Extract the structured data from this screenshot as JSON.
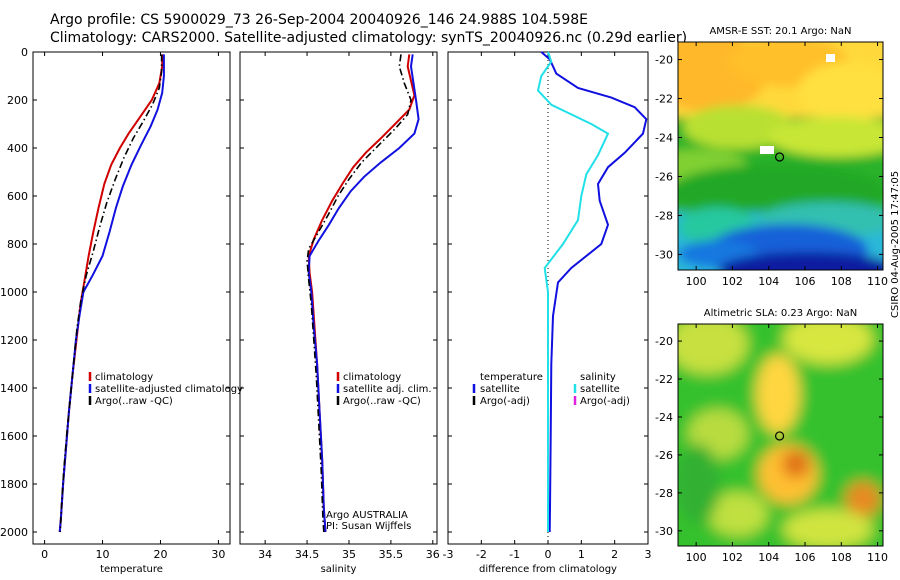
{
  "header": {
    "line1": "Argo profile: CS 5900029_73 26-Sep-2004 20040926_146 24.988S 104.598E",
    "line2": "Climatology: CARS2000. Satellite-adjusted climatology: synTS_20040926.nc (0.29d earlier)"
  },
  "footer_stamp": "CSIRO 04-Aug-2005 17:47:05",
  "chart_data": [
    {
      "type": "line",
      "panel": "temperature",
      "xlabel": "temperature",
      "xlim": [
        -2,
        32
      ],
      "ylim": [
        0,
        2050
      ],
      "y_reversed": true,
      "xticks": [
        0,
        10,
        20,
        30
      ],
      "yticks": [
        0,
        200,
        400,
        600,
        800,
        1000,
        1200,
        1400,
        1600,
        1800,
        2000
      ],
      "legend": {
        "placement": "lower-right",
        "entries": [
          {
            "label": "climatology",
            "color": "#d00000"
          },
          {
            "label": "satellite-adjusted climatology",
            "color": "#1010e0"
          },
          {
            "label": "Argo(..raw -QC)",
            "color": "#000000"
          }
        ]
      },
      "series": [
        {
          "name": "climatology",
          "color": "#d00000",
          "style": "solid",
          "points": [
            [
              20.3,
              10
            ],
            [
              20.3,
              60
            ],
            [
              19.8,
              130
            ],
            [
              18.5,
              200
            ],
            [
              16.5,
              270
            ],
            [
              14.5,
              340
            ],
            [
              13,
              400
            ],
            [
              11.5,
              470
            ],
            [
              10.3,
              550
            ],
            [
              9.3,
              650
            ],
            [
              8.4,
              750
            ],
            [
              7.6,
              850
            ],
            [
              6.9,
              950
            ],
            [
              6.2,
              1050
            ],
            [
              5.5,
              1200
            ],
            [
              4.8,
              1350
            ],
            [
              4.2,
              1500
            ],
            [
              3.7,
              1650
            ],
            [
              3.2,
              1800
            ],
            [
              2.8,
              1950
            ],
            [
              2.6,
              2000
            ]
          ]
        },
        {
          "name": "satellite-adjusted climatology",
          "color": "#1010e0",
          "style": "solid",
          "points": [
            [
              20.6,
              10
            ],
            [
              20.6,
              100
            ],
            [
              20.3,
              170
            ],
            [
              19.5,
              240
            ],
            [
              18.3,
              310
            ],
            [
              16.6,
              390
            ],
            [
              15,
              470
            ],
            [
              13.5,
              560
            ],
            [
              12.3,
              650
            ],
            [
              11.2,
              750
            ],
            [
              10,
              850
            ],
            [
              8.3,
              930
            ],
            [
              6.7,
              1000
            ],
            [
              6,
              1100
            ],
            [
              5.4,
              1200
            ],
            [
              4.8,
              1350
            ],
            [
              4.2,
              1500
            ],
            [
              3.7,
              1650
            ],
            [
              3.2,
              1800
            ],
            [
              2.8,
              1950
            ],
            [
              2.6,
              2000
            ]
          ]
        },
        {
          "name": "Argo(..raw -QC)",
          "color": "#000000",
          "style": "dashdot",
          "points": [
            [
              20.2,
              10
            ],
            [
              20.2,
              80
            ],
            [
              19.8,
              150
            ],
            [
              18.6,
              220
            ],
            [
              17,
              290
            ],
            [
              15.3,
              360
            ],
            [
              13.7,
              440
            ],
            [
              12.2,
              530
            ],
            [
              10.7,
              630
            ],
            [
              9.5,
              730
            ],
            [
              8.4,
              830
            ],
            [
              7.2,
              930
            ],
            [
              6.3,
              1030
            ],
            [
              5.6,
              1150
            ],
            [
              5,
              1300
            ],
            [
              4.4,
              1450
            ],
            [
              3.8,
              1600
            ],
            [
              3.3,
              1750
            ],
            [
              2.9,
              1900
            ],
            [
              2.7,
              2000
            ]
          ]
        }
      ]
    },
    {
      "type": "line",
      "panel": "salinity",
      "xlabel": "salinity",
      "xlim": [
        33.7,
        36.05
      ],
      "ylim": [
        0,
        2050
      ],
      "y_reversed": true,
      "xticks": [
        34,
        34.5,
        35,
        35.5,
        36
      ],
      "legend": {
        "placement": "lower-right",
        "entries": [
          {
            "label": "climatology",
            "color": "#d00000"
          },
          {
            "label": "satellite adj. clim.",
            "color": "#1010e0"
          },
          {
            "label": "Argo(..raw -QC)",
            "color": "#000000"
          }
        ]
      },
      "annotation": [
        "Argo AUSTRALIA",
        "PI: Susan Wijffels"
      ],
      "series": [
        {
          "name": "climatology",
          "color": "#d00000",
          "style": "solid",
          "points": [
            [
              35.72,
              10
            ],
            [
              35.7,
              60
            ],
            [
              35.74,
              120
            ],
            [
              35.78,
              180
            ],
            [
              35.72,
              240
            ],
            [
              35.55,
              300
            ],
            [
              35.38,
              360
            ],
            [
              35.2,
              420
            ],
            [
              35.05,
              480
            ],
            [
              34.92,
              550
            ],
            [
              34.8,
              620
            ],
            [
              34.68,
              700
            ],
            [
              34.58,
              780
            ],
            [
              34.52,
              850
            ],
            [
              34.53,
              920
            ],
            [
              34.56,
              1000
            ],
            [
              34.59,
              1150
            ],
            [
              34.62,
              1300
            ],
            [
              34.65,
              1500
            ],
            [
              34.68,
              1700
            ],
            [
              34.7,
              1900
            ],
            [
              34.72,
              2000
            ]
          ]
        },
        {
          "name": "satellite adj. clim.",
          "color": "#1010e0",
          "style": "solid",
          "points": [
            [
              35.76,
              10
            ],
            [
              35.74,
              60
            ],
            [
              35.77,
              130
            ],
            [
              35.8,
              200
            ],
            [
              35.83,
              280
            ],
            [
              35.78,
              340
            ],
            [
              35.6,
              400
            ],
            [
              35.38,
              460
            ],
            [
              35.18,
              520
            ],
            [
              35.02,
              580
            ],
            [
              34.88,
              650
            ],
            [
              34.76,
              720
            ],
            [
              34.63,
              790
            ],
            [
              34.53,
              850
            ],
            [
              34.52,
              920
            ],
            [
              34.55,
              1000
            ],
            [
              34.58,
              1150
            ],
            [
              34.62,
              1300
            ],
            [
              34.65,
              1500
            ],
            [
              34.68,
              1700
            ],
            [
              34.7,
              1900
            ],
            [
              34.72,
              2000
            ]
          ]
        },
        {
          "name": "Argo(..raw -QC)",
          "color": "#000000",
          "style": "dashdot",
          "points": [
            [
              35.62,
              10
            ],
            [
              35.6,
              60
            ],
            [
              35.66,
              130
            ],
            [
              35.74,
              200
            ],
            [
              35.7,
              260
            ],
            [
              35.55,
              320
            ],
            [
              35.35,
              390
            ],
            [
              35.15,
              460
            ],
            [
              35,
              530
            ],
            [
              34.87,
              600
            ],
            [
              34.75,
              680
            ],
            [
              34.62,
              760
            ],
            [
              34.52,
              820
            ],
            [
              34.5,
              870
            ],
            [
              34.52,
              950
            ],
            [
              34.55,
              1050
            ],
            [
              34.58,
              1200
            ],
            [
              34.61,
              1350
            ],
            [
              34.64,
              1550
            ],
            [
              34.67,
              1750
            ],
            [
              34.69,
              1950
            ],
            [
              34.7,
              2000
            ]
          ]
        }
      ]
    },
    {
      "type": "line",
      "panel": "difference",
      "xlabel": "difference from climatology",
      "xlim": [
        -3,
        3
      ],
      "ylim": [
        0,
        2050
      ],
      "y_reversed": true,
      "xticks": [
        -3,
        -2,
        -1,
        0,
        1,
        2,
        3
      ],
      "zero_line": "dotted",
      "legend": {
        "placement": "lower",
        "left_title": "temperature",
        "right_title": "salinity",
        "left_entries": [
          {
            "label": "satellite",
            "color": "#1010e0"
          },
          {
            "label": "Argo(-adj)",
            "color": "#000000"
          }
        ],
        "right_entries": [
          {
            "label": "satellite",
            "color": "#20e0e8"
          },
          {
            "label": "Argo(-adj)",
            "color": "#e020e0"
          }
        ]
      },
      "series": [
        {
          "name": "temperature satellite",
          "color": "#1010e0",
          "style": "solid",
          "points": [
            [
              -0.2,
              0
            ],
            [
              0.05,
              30
            ],
            [
              0.25,
              90
            ],
            [
              0.9,
              150
            ],
            [
              1.9,
              190
            ],
            [
              2.6,
              230
            ],
            [
              2.95,
              280
            ],
            [
              2.85,
              340
            ],
            [
              2.3,
              420
            ],
            [
              1.8,
              480
            ],
            [
              1.5,
              550
            ],
            [
              1.55,
              620
            ],
            [
              1.8,
              720
            ],
            [
              1.6,
              800
            ],
            [
              0.7,
              900
            ],
            [
              0.3,
              960
            ],
            [
              0.15,
              1100
            ],
            [
              0.1,
              1300
            ],
            [
              0.08,
              1600
            ],
            [
              0.06,
              1900
            ],
            [
              0.05,
              2000
            ]
          ]
        },
        {
          "name": "salinity satellite",
          "color": "#20e0e8",
          "style": "solid",
          "points": [
            [
              0,
              0
            ],
            [
              0.1,
              40
            ],
            [
              -0.2,
              100
            ],
            [
              -0.3,
              160
            ],
            [
              0.1,
              220
            ],
            [
              0.7,
              260
            ],
            [
              1.3,
              300
            ],
            [
              1.8,
              340
            ],
            [
              1.5,
              430
            ],
            [
              1.15,
              510
            ],
            [
              1.0,
              600
            ],
            [
              0.9,
              700
            ],
            [
              0.45,
              800
            ],
            [
              -0.1,
              900
            ],
            [
              0,
              1000
            ],
            [
              0,
              1200
            ],
            [
              0,
              1500
            ],
            [
              0,
              1800
            ],
            [
              0,
              2000
            ]
          ]
        }
      ]
    },
    {
      "type": "heatmap",
      "panel": "sst-map",
      "title": "AMSR-E SST: 20.1 Argo: NaN",
      "xlim": [
        99,
        110.3
      ],
      "ylim": [
        -30.8,
        -19.1
      ],
      "xticks": [
        100,
        102,
        104,
        106,
        108,
        110
      ],
      "yticks": [
        -20,
        -22,
        -24,
        -26,
        -28,
        -30
      ],
      "argo_position": [
        104.6,
        -25.0
      ]
    },
    {
      "type": "heatmap",
      "panel": "sla-map",
      "title": "Altimetric SLA: 0.23 Argo: NaN",
      "xlim": [
        99,
        110.3
      ],
      "ylim": [
        -30.8,
        -19.1
      ],
      "xticks": [
        100,
        102,
        104,
        106,
        108,
        110
      ],
      "yticks": [
        -20,
        -22,
        -24,
        -26,
        -28,
        -30
      ],
      "argo_position": [
        104.6,
        -25.0
      ]
    }
  ]
}
